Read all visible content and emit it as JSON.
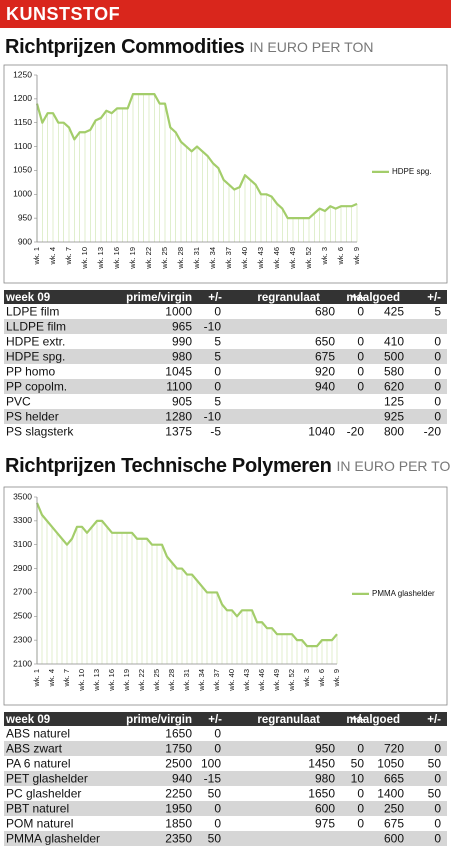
{
  "header": "KUNSTSTOF",
  "sections": [
    {
      "title": "Richtprijzen Commodities",
      "unit": "IN EURO PER TON"
    },
    {
      "title": "Richtprijzen Technische Polymeren",
      "unit": "IN EURO PER TON"
    }
  ],
  "chart_data": [
    {
      "type": "line",
      "categories": [
        "wk. 1",
        null,
        null,
        "wk. 4",
        null,
        null,
        "wk. 7",
        null,
        null,
        "wk. 10",
        null,
        null,
        "wk. 13",
        null,
        null,
        "wk. 16",
        null,
        null,
        "wk. 19",
        null,
        null,
        "wk. 22",
        null,
        null,
        "wk. 25",
        null,
        null,
        "wk. 28",
        null,
        null,
        "wk. 31",
        null,
        null,
        "wk. 34",
        null,
        null,
        "wk. 37",
        null,
        null,
        "wk. 40",
        null,
        null,
        "wk. 43",
        null,
        null,
        "wk. 46",
        null,
        null,
        "wk. 49",
        null,
        null,
        "wk. 52",
        null,
        null,
        "wk. 3",
        null,
        null,
        "wk. 6",
        null,
        null,
        "wk. 9"
      ],
      "series": [
        {
          "name": "HDPE spg.",
          "color": "#a3cd6a",
          "values": [
            1190,
            1150,
            1170,
            1170,
            1150,
            1150,
            1140,
            1115,
            1130,
            1130,
            1135,
            1155,
            1160,
            1175,
            1170,
            1180,
            1180,
            1180,
            1210,
            1210,
            1210,
            1210,
            1210,
            1190,
            1190,
            1140,
            1130,
            1110,
            1100,
            1090,
            1100,
            1090,
            1080,
            1065,
            1055,
            1030,
            1020,
            1010,
            1015,
            1040,
            1030,
            1020,
            1000,
            1000,
            995,
            980,
            970,
            950,
            950,
            950,
            950,
            950,
            960,
            970,
            965,
            975,
            970,
            975,
            975,
            975,
            980
          ]
        }
      ],
      "ylim": [
        900,
        1250
      ],
      "yticks": [
        900,
        950,
        1000,
        1050,
        1100,
        1150,
        1200,
        1250
      ]
    },
    {
      "type": "line",
      "categories": [
        "wk. 1",
        null,
        null,
        "wk. 4",
        null,
        null,
        "wk. 7",
        null,
        null,
        "wk. 10",
        null,
        null,
        "wk. 13",
        null,
        null,
        "wk. 16",
        null,
        null,
        "wk. 19",
        null,
        null,
        "wk. 22",
        null,
        null,
        "wk. 25",
        null,
        null,
        "wk. 28",
        null,
        null,
        "wk. 31",
        null,
        null,
        "wk. 34",
        null,
        null,
        "wk. 37",
        null,
        null,
        "wk. 40",
        null,
        null,
        "wk. 43",
        null,
        null,
        "wk. 46",
        null,
        null,
        "wk. 49",
        null,
        null,
        "wk. 52",
        null,
        null,
        "wk. 3",
        null,
        null,
        "wk. 6",
        null,
        null,
        "wk. 9"
      ],
      "series": [
        {
          "name": "PMMA glashelder",
          "color": "#a3cd6a",
          "values": [
            3450,
            3350,
            3300,
            3250,
            3200,
            3150,
            3100,
            3150,
            3250,
            3250,
            3200,
            3250,
            3300,
            3300,
            3250,
            3200,
            3200,
            3200,
            3200,
            3200,
            3150,
            3150,
            3150,
            3100,
            3100,
            3100,
            3000,
            2950,
            2900,
            2900,
            2850,
            2850,
            2800,
            2750,
            2700,
            2700,
            2700,
            2600,
            2550,
            2550,
            2500,
            2550,
            2550,
            2550,
            2450,
            2450,
            2400,
            2400,
            2350,
            2350,
            2350,
            2350,
            2300,
            2300,
            2250,
            2250,
            2250,
            2300,
            2300,
            2300,
            2350
          ]
        }
      ],
      "ylim": [
        2100,
        3500
      ],
      "yticks": [
        2100,
        2300,
        2500,
        2700,
        2900,
        3100,
        3300,
        3500
      ]
    }
  ],
  "tables": [
    {
      "header": [
        "week 09",
        "prime/virgin",
        "+/-",
        "regranulaat",
        "+/-",
        "maalgoed",
        "+/-"
      ],
      "rows": [
        [
          "LDPE film",
          1000,
          0,
          680,
          0,
          425,
          5
        ],
        [
          "LLDPE film",
          965,
          -10,
          null,
          null,
          null,
          null
        ],
        [
          "HDPE extr.",
          990,
          5,
          650,
          0,
          410,
          0
        ],
        [
          "HDPE spg.",
          980,
          5,
          675,
          0,
          500,
          0
        ],
        [
          "PP homo",
          1045,
          0,
          920,
          0,
          580,
          0
        ],
        [
          "PP copolm.",
          1100,
          0,
          940,
          0,
          620,
          0
        ],
        [
          "PVC",
          905,
          5,
          null,
          null,
          125,
          0
        ],
        [
          "PS helder",
          1280,
          -10,
          null,
          null,
          925,
          0
        ],
        [
          "PS slagsterk",
          1375,
          -5,
          1040,
          -20,
          800,
          -20
        ]
      ]
    },
    {
      "header": [
        "week 09",
        "prime/virgin",
        "+/-",
        "regranulaat",
        "+/-",
        "maalgoed",
        "+/-"
      ],
      "rows": [
        [
          "ABS naturel",
          1650,
          0,
          null,
          null,
          null,
          null
        ],
        [
          "ABS zwart",
          1750,
          0,
          950,
          0,
          720,
          0
        ],
        [
          "PA 6 naturel",
          2500,
          100,
          1450,
          50,
          1050,
          50
        ],
        [
          "PET glashelder",
          940,
          -15,
          980,
          10,
          665,
          0
        ],
        [
          "PC glashelder",
          2250,
          50,
          1650,
          0,
          1400,
          50
        ],
        [
          "PBT naturel",
          1950,
          0,
          600,
          0,
          250,
          0
        ],
        [
          "POM naturel",
          1850,
          0,
          975,
          0,
          675,
          0
        ],
        [
          "PMMA glashelder",
          2350,
          50,
          null,
          null,
          600,
          0
        ]
      ]
    }
  ]
}
